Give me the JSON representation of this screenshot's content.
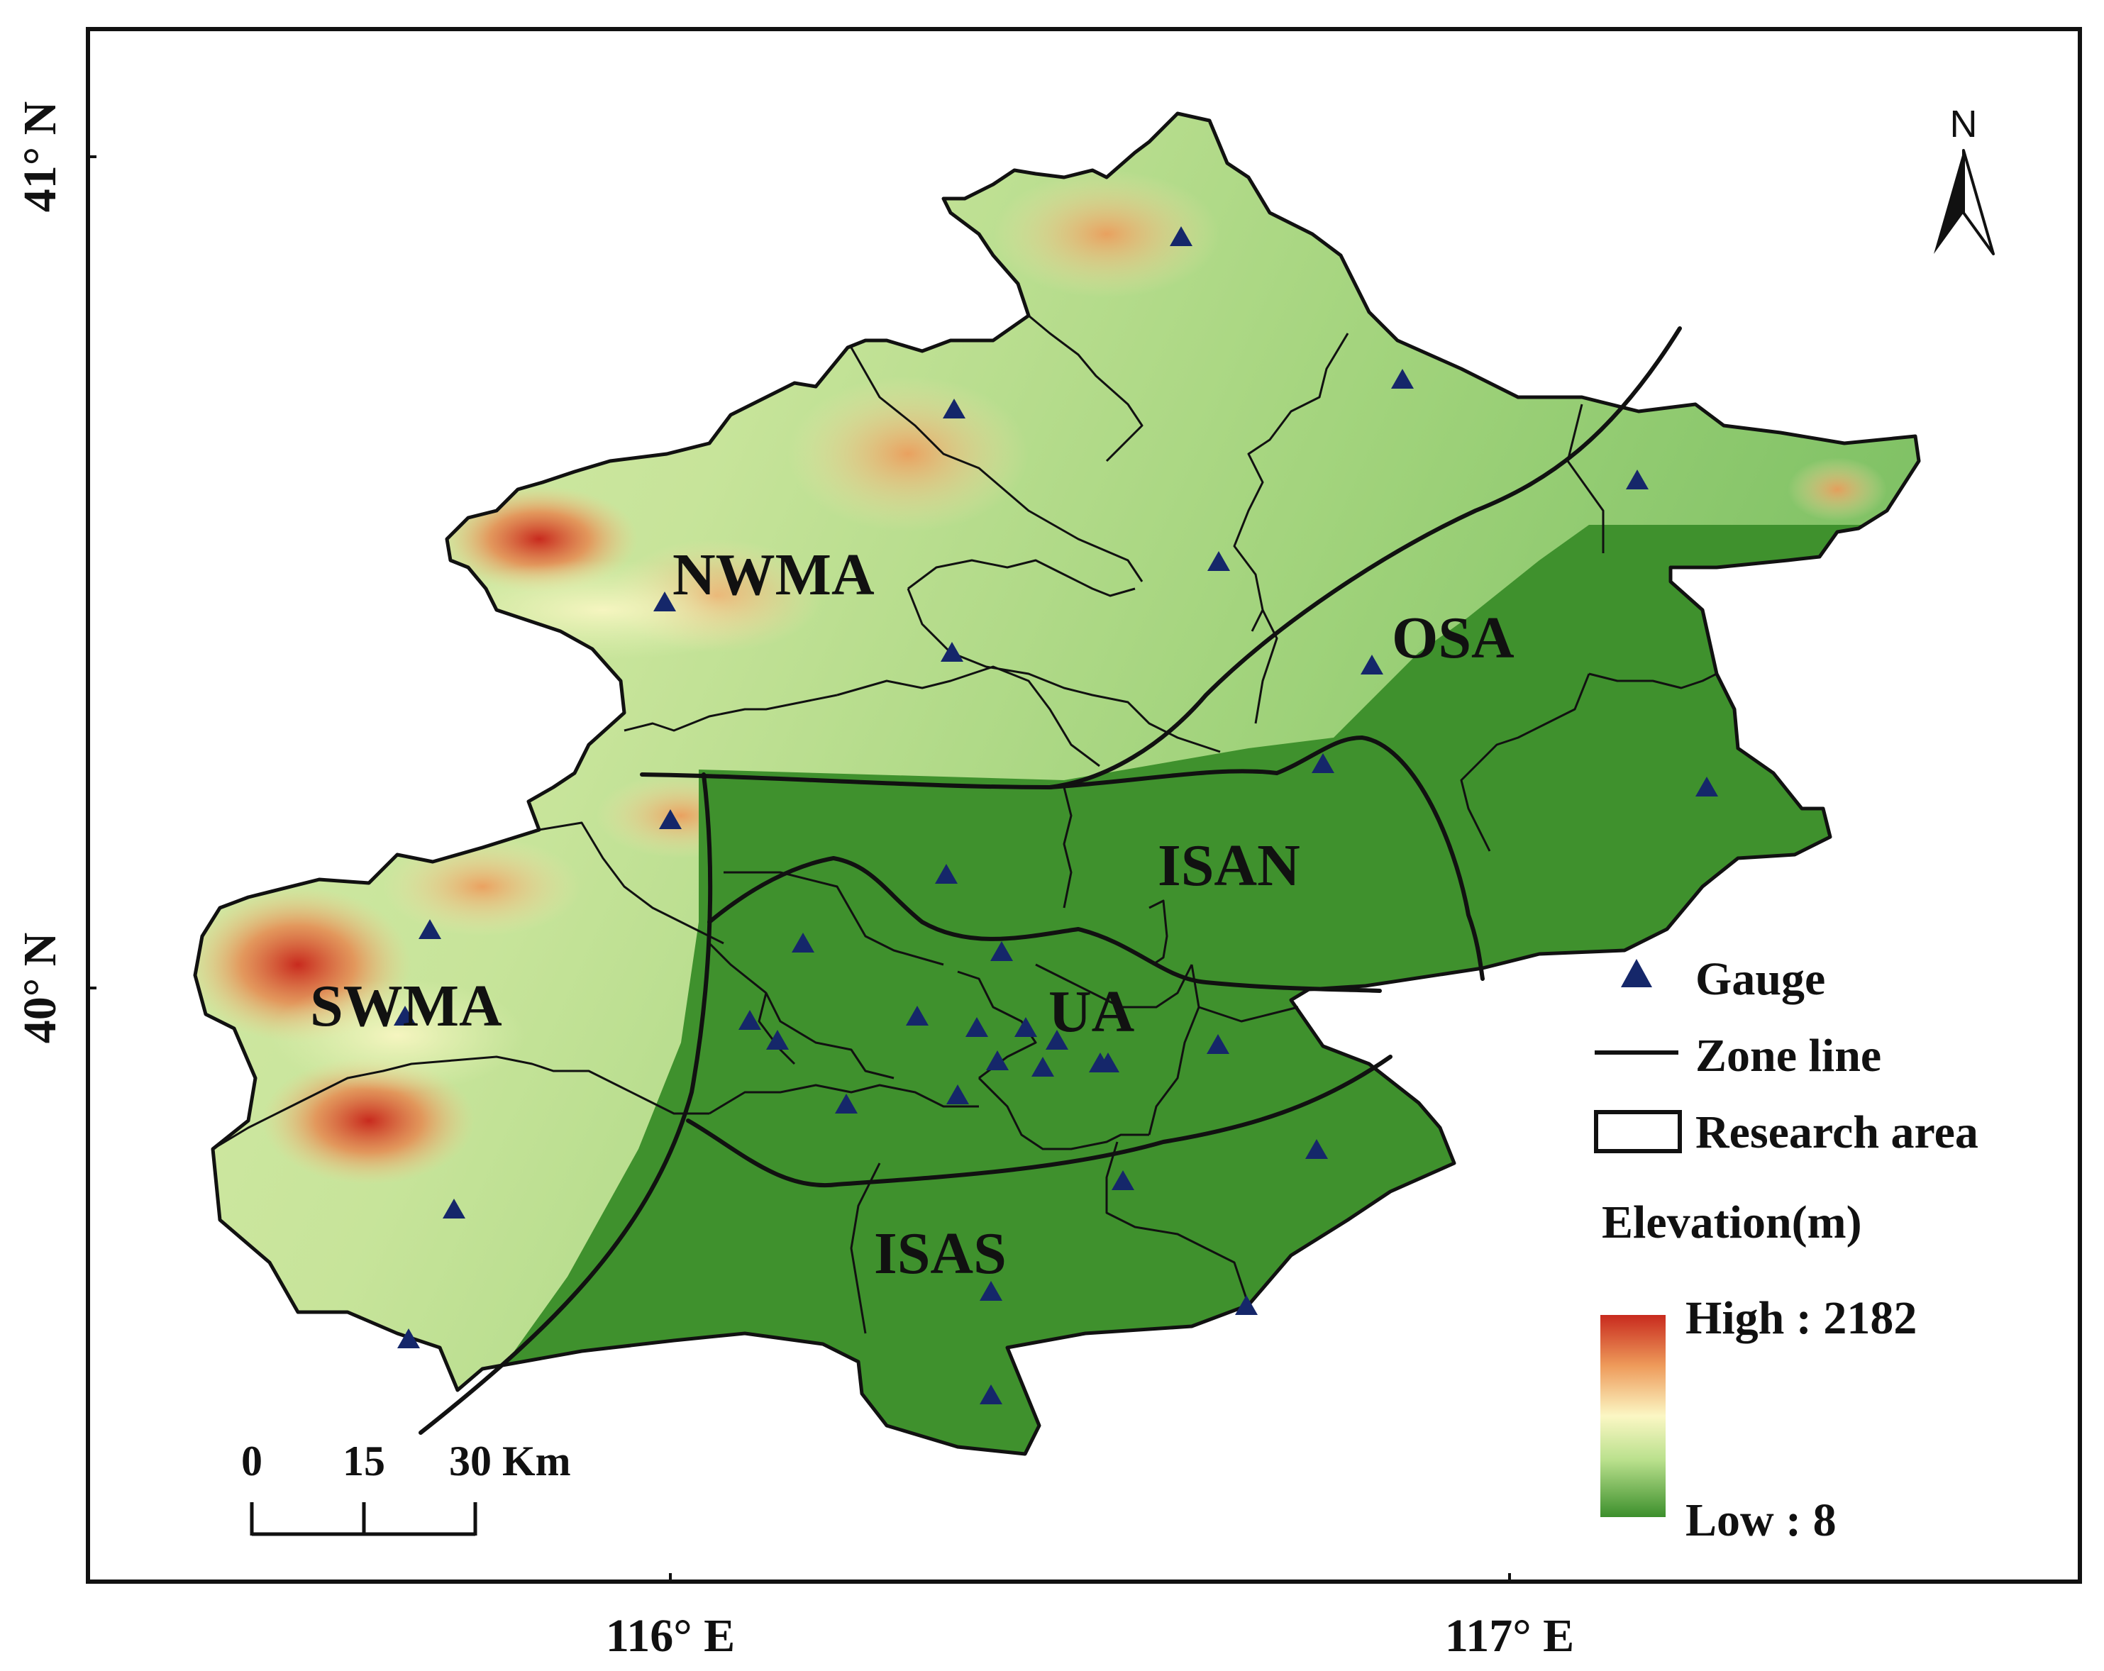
{
  "map": {
    "axes": {
      "lat_labels": [
        "41° N",
        "40° N"
      ],
      "lon_labels": [
        "116° E",
        "117° E"
      ]
    },
    "zones": [
      "NWMA",
      "OSA",
      "ISAN",
      "SWMA",
      "UA",
      "ISAS"
    ],
    "north_arrow": {
      "label": "N"
    },
    "scale_bar": {
      "labels": [
        "0",
        "15",
        "30 Km"
      ]
    },
    "legend": {
      "gauge": "Gauge",
      "zone_line": "Zone line",
      "research_area": "Research area",
      "elevation_title": "Elevation(m)",
      "high": "High : 2182",
      "low": "Low : 8"
    },
    "colors": {
      "high": "#c82a1e",
      "mid_orange": "#ee9a5a",
      "mid_light": "#fbf7c4",
      "light_green": "#b9e08c",
      "low": "#3c8f2c",
      "gauge": "#15276a"
    },
    "gauge_icon": "triangle-icon"
  }
}
